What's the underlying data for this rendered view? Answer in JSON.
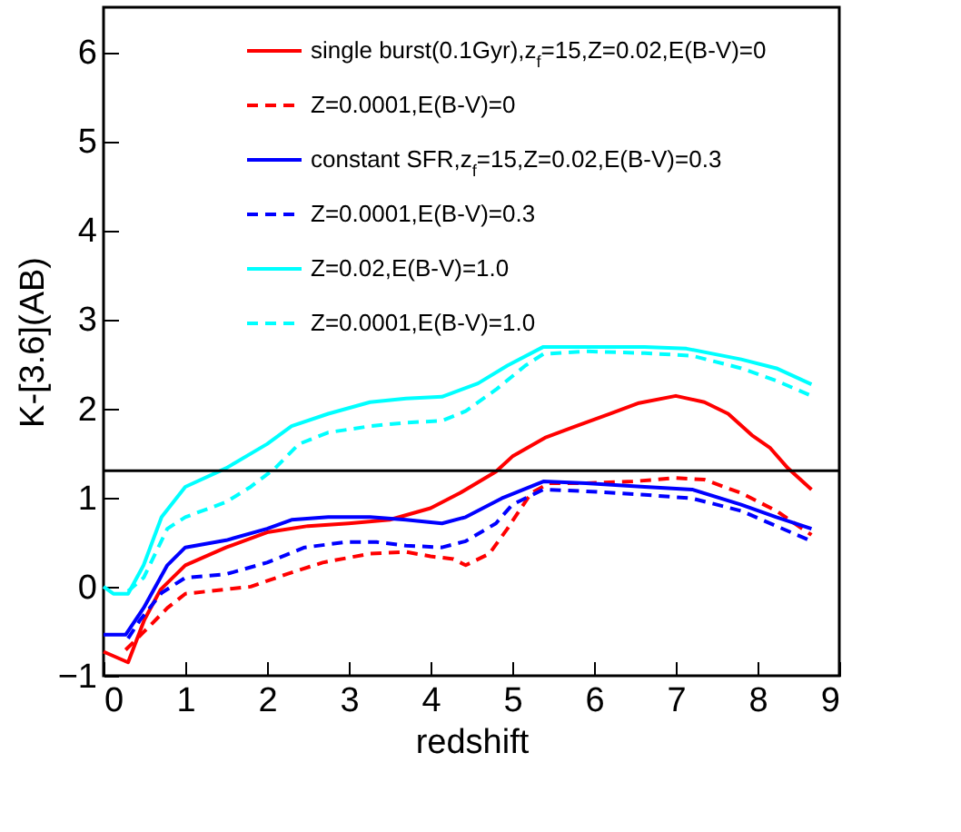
{
  "chart_data": {
    "type": "line",
    "xlabel": "redshift",
    "ylabel": "K-[3.6](AB)",
    "xlim": [
      0,
      9
    ],
    "ylim": [
      -1,
      6.5
    ],
    "xticks": [
      0,
      1,
      2,
      3,
      4,
      5,
      6,
      7,
      8,
      9
    ],
    "yticks": [
      -1,
      0,
      1,
      2,
      3,
      4,
      5,
      6
    ],
    "grid": false,
    "legend": "top right",
    "ref_lines": [
      {
        "axis": "y",
        "value": 1.3,
        "color": "#000000"
      }
    ],
    "series": [
      {
        "name": "single burst(0.1Gyr),z$_{f}$=15,Z=0.02,E(B-V)=0",
        "color": "#ff0000",
        "line_style": "solid",
        "x": [
          0,
          0.3,
          0.5,
          0.7,
          1,
          1.5,
          2,
          2.5,
          3,
          3.5,
          4,
          4.36,
          4.8,
          5,
          5.4,
          5.75,
          6.2,
          6.55,
          7,
          7.35,
          7.64,
          7.93,
          8.15,
          8.37,
          8.66
        ],
        "values": [
          -0.73,
          -0.85,
          -0.37,
          -0.03,
          0.24,
          0.44,
          0.61,
          0.68,
          0.71,
          0.75,
          0.88,
          1.05,
          1.29,
          1.46,
          1.67,
          1.79,
          1.94,
          2.06,
          2.14,
          2.07,
          1.94,
          1.7,
          1.56,
          1.33,
          1.09
        ]
      },
      {
        "name": "Z=0.0001,E(B-V)=0",
        "color": "#ff0000",
        "line_style": "dashed",
        "x": [
          0.27,
          0.49,
          0.78,
          1,
          1.5,
          1.8,
          2.24,
          2.68,
          3.26,
          3.7,
          4,
          4.28,
          4.43,
          4.72,
          4.94,
          5.23,
          5.45,
          5.9,
          6.47,
          7,
          7.35,
          7.8,
          8.23,
          8.66
        ],
        "values": [
          -0.71,
          -0.51,
          -0.24,
          -0.08,
          -0.03,
          0,
          0.14,
          0.27,
          0.37,
          0.39,
          0.34,
          0.31,
          0.24,
          0.37,
          0.65,
          1.05,
          1.16,
          1.16,
          1.18,
          1.22,
          1.2,
          1.05,
          0.85,
          0.58
        ]
      },
      {
        "name": "constant SFR,z$_{f}$=15,Z=0.02,E(B-V)=0.3",
        "color": "#0000ff",
        "line_style": "solid",
        "x": [
          0,
          0.27,
          0.49,
          0.78,
          1,
          1.5,
          2,
          2.3,
          2.75,
          3.26,
          3.7,
          4.14,
          4.43,
          4.87,
          5.38,
          5.9,
          6.62,
          7.2,
          7.8,
          8.23,
          8.66
        ],
        "values": [
          -0.54,
          -0.54,
          -0.24,
          0.24,
          0.44,
          0.52,
          0.65,
          0.75,
          0.78,
          0.78,
          0.75,
          0.71,
          0.78,
          0.99,
          1.18,
          1.16,
          1.12,
          1.09,
          0.92,
          0.78,
          0.65
        ]
      },
      {
        "name": "Z=0.0001,E(B-V)=0.3",
        "color": "#0000ff",
        "line_style": "dashed",
        "x": [
          0.3,
          0.45,
          0.71,
          1,
          1.5,
          2,
          2.46,
          2.97,
          3.34,
          3.7,
          4.14,
          4.43,
          4.8,
          5,
          5.38,
          5.9,
          6.62,
          7.2,
          7.8,
          8.23,
          8.66
        ],
        "values": [
          -0.58,
          -0.37,
          -0.07,
          0.1,
          0.14,
          0.27,
          0.44,
          0.5,
          0.5,
          0.46,
          0.44,
          0.51,
          0.71,
          0.92,
          1.09,
          1.07,
          1.03,
          0.99,
          0.85,
          0.68,
          0.51
        ]
      },
      {
        "name": "Z=0.02,E(B-V)=1.0",
        "color": "#00ffff",
        "line_style": "solid",
        "x": [
          0,
          0.12,
          0.3,
          0.49,
          0.71,
          1,
          1.5,
          2,
          2.3,
          2.75,
          3.26,
          3.7,
          4.14,
          4.58,
          4.94,
          5.38,
          5.9,
          6.62,
          7.13,
          7.8,
          8.23,
          8.66
        ],
        "values": [
          0,
          -0.08,
          -0.08,
          0.24,
          0.78,
          1.12,
          1.33,
          1.6,
          1.8,
          1.94,
          2.07,
          2.11,
          2.13,
          2.28,
          2.48,
          2.69,
          2.69,
          2.69,
          2.67,
          2.55,
          2.45,
          2.27
        ]
      },
      {
        "name": "Z=0.0001,E(B-V)=1.0",
        "color": "#00ffff",
        "line_style": "dashed",
        "x": [
          0.3,
          0.49,
          0.78,
          1,
          1.5,
          1.8,
          2.1,
          2.39,
          2.75,
          3.26,
          3.7,
          4.14,
          4.43,
          4.8,
          5.16,
          5.38,
          5.9,
          6.62,
          7.2,
          7.8,
          8.23,
          8.66
        ],
        "values": [
          -0.05,
          0.1,
          0.65,
          0.78,
          0.95,
          1.12,
          1.33,
          1.6,
          1.73,
          1.8,
          1.84,
          1.86,
          1.97,
          2.21,
          2.48,
          2.61,
          2.64,
          2.62,
          2.59,
          2.45,
          2.31,
          2.14
        ]
      }
    ]
  }
}
